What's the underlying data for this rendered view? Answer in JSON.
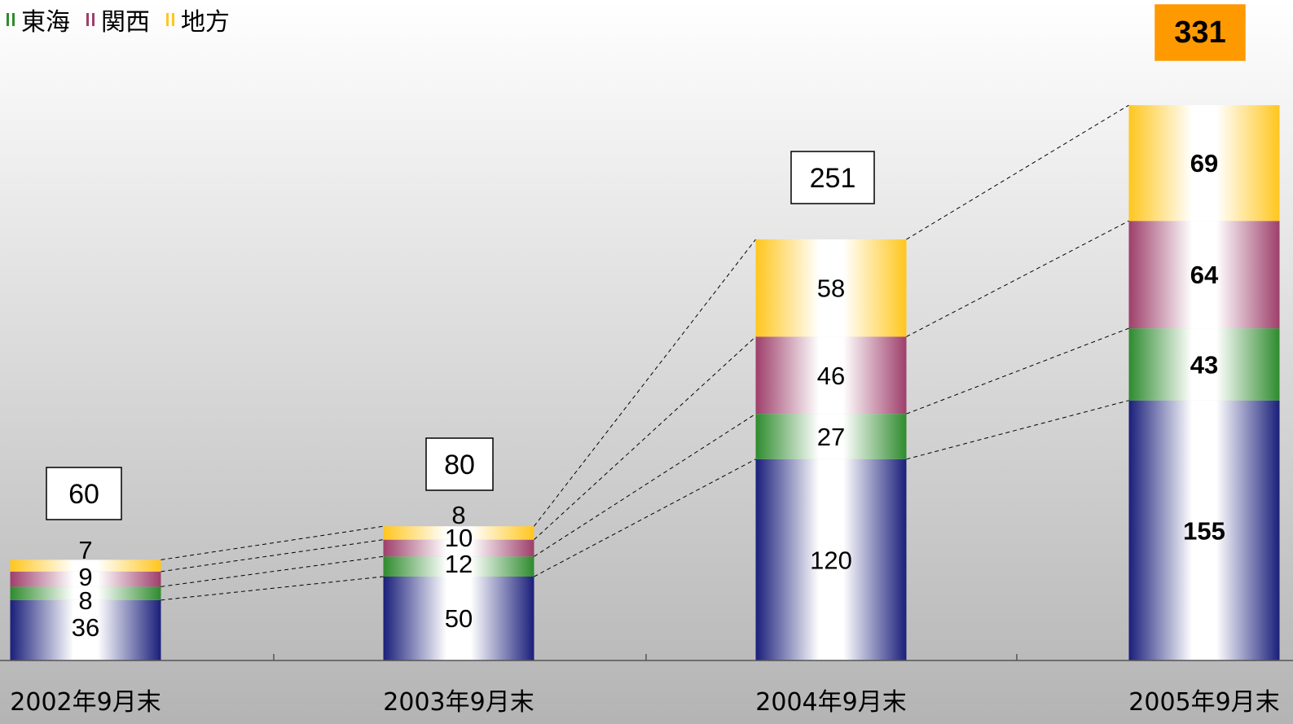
{
  "legend": {
    "items": [
      {
        "label": "東海",
        "color": "#2e8b2e"
      },
      {
        "label": "関西",
        "color": "#9e3f6b"
      },
      {
        "label": "地方",
        "color": "#ffc61e"
      }
    ]
  },
  "colors": {
    "base": "#1a1f7a",
    "tokai": "#2e8b2e",
    "kansai": "#9e3f6b",
    "chiho": "#ffc61e",
    "highlight_total_bg": "#ff9900"
  },
  "chart_data": {
    "type": "bar",
    "stacked": true,
    "categories": [
      "2002年9月末",
      "2003年9月末",
      "2004年9月末",
      "2005年9月末"
    ],
    "series": [
      {
        "values": [
          36,
          50,
          120,
          155
        ]
      },
      {
        "name": "東海",
        "values": [
          8,
          12,
          27,
          43
        ]
      },
      {
        "name": "関西",
        "values": [
          9,
          10,
          46,
          64
        ]
      },
      {
        "name": "地方",
        "values": [
          7,
          8,
          58,
          69
        ]
      }
    ],
    "totals": [
      "60",
      "80",
      "251",
      "331"
    ],
    "title": "",
    "xlabel": "",
    "ylabel": "",
    "ylim": [
      0,
      331
    ],
    "grid": false,
    "legend_position": "top-left"
  }
}
